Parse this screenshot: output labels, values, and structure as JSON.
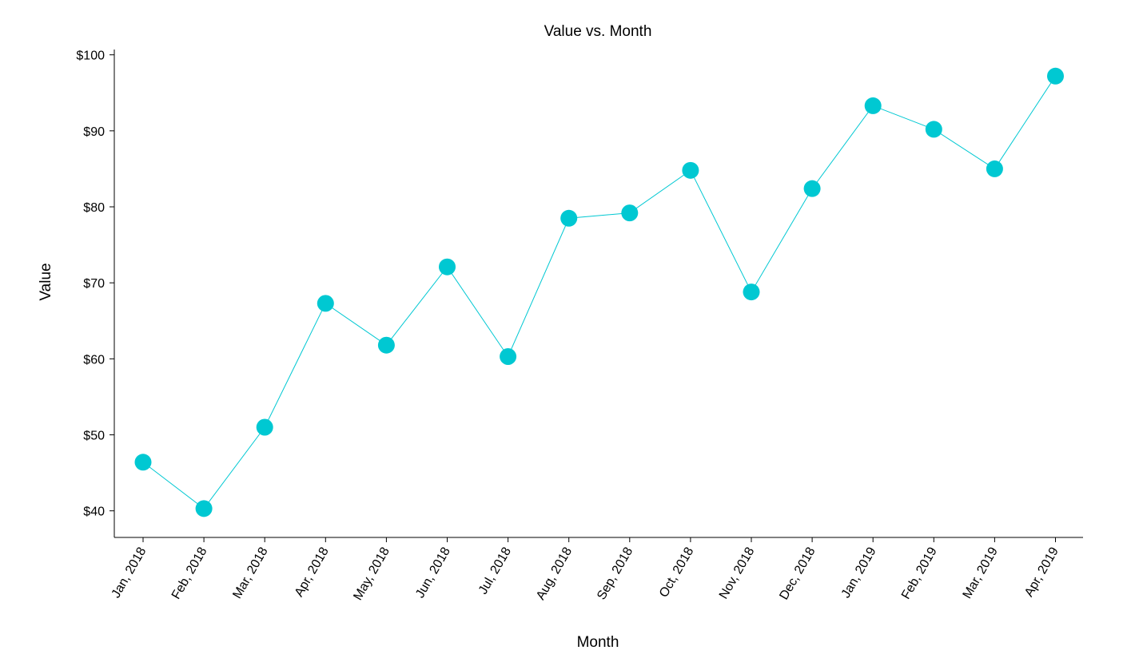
{
  "chart_data": {
    "type": "line",
    "title": "Value vs. Month",
    "xlabel": "Month",
    "ylabel": "Value",
    "categories": [
      "Jan, 2018",
      "Feb, 2018",
      "Mar, 2018",
      "Apr, 2018",
      "May, 2018",
      "Jun, 2018",
      "Jul, 2018",
      "Aug, 2018",
      "Sep, 2018",
      "Oct, 2018",
      "Nov, 2018",
      "Dec, 2018",
      "Jan, 2019",
      "Feb, 2019",
      "Mar, 2019",
      "Apr, 2019"
    ],
    "values": [
      46.4,
      40.3,
      51.0,
      67.3,
      61.8,
      72.1,
      60.3,
      78.5,
      79.2,
      84.8,
      68.8,
      82.4,
      93.3,
      90.2,
      85.0,
      97.2
    ],
    "y_ticks": [
      40,
      50,
      60,
      70,
      80,
      90,
      100
    ],
    "y_tick_labels": [
      "$40",
      "$50",
      "$60",
      "$70",
      "$80",
      "$90",
      "$100"
    ],
    "ylim": [
      36.5,
      100.7
    ],
    "grid": false,
    "legend": "none",
    "series_color": "#00C8D2"
  }
}
